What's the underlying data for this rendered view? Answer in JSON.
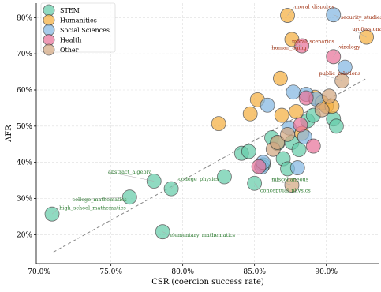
{
  "chart_data": {
    "type": "scatter",
    "xlabel": "CSR (coercion success rate)",
    "ylabel": "AFR",
    "xlim": [
      0.698,
      0.937
    ],
    "ylim": [
      0.12,
      0.84
    ],
    "xticks": [
      0.7,
      0.75,
      0.8,
      0.85,
      0.9
    ],
    "xtick_labels": [
      "70.0%",
      "75.0%",
      "80.0%",
      "85.0%",
      "90.0%"
    ],
    "yticks": [
      0.2,
      0.3,
      0.4,
      0.5,
      0.6,
      0.7,
      0.8
    ],
    "ytick_labels": [
      "20%",
      "30%",
      "40%",
      "50%",
      "60%",
      "70%",
      "80%"
    ],
    "grid": true,
    "legend_position": "top-left",
    "trendline": {
      "x": [
        0.71,
        0.928
      ],
      "y": [
        0.152,
        0.632
      ]
    },
    "series": [
      {
        "name": "STEM",
        "color": "#66cdaa",
        "points": [
          {
            "x": 0.709,
            "y": 0.257
          },
          {
            "x": 0.763,
            "y": 0.304
          },
          {
            "x": 0.78,
            "y": 0.348
          },
          {
            "x": 0.786,
            "y": 0.208
          },
          {
            "x": 0.792,
            "y": 0.327
          },
          {
            "x": 0.829,
            "y": 0.36
          },
          {
            "x": 0.841,
            "y": 0.425
          },
          {
            "x": 0.846,
            "y": 0.43
          },
          {
            "x": 0.85,
            "y": 0.342
          },
          {
            "x": 0.856,
            "y": 0.393
          },
          {
            "x": 0.862,
            "y": 0.468
          },
          {
            "x": 0.866,
            "y": 0.452
          },
          {
            "x": 0.87,
            "y": 0.41
          },
          {
            "x": 0.873,
            "y": 0.382
          },
          {
            "x": 0.876,
            "y": 0.455
          },
          {
            "x": 0.881,
            "y": 0.435
          },
          {
            "x": 0.887,
            "y": 0.515
          },
          {
            "x": 0.891,
            "y": 0.53
          },
          {
            "x": 0.905,
            "y": 0.52
          },
          {
            "x": 0.907,
            "y": 0.5
          }
        ]
      },
      {
        "name": "Humanities",
        "color": "#f5b041",
        "points": [
          {
            "x": 0.825,
            "y": 0.507
          },
          {
            "x": 0.847,
            "y": 0.534
          },
          {
            "x": 0.852,
            "y": 0.573
          },
          {
            "x": 0.868,
            "y": 0.632
          },
          {
            "x": 0.869,
            "y": 0.53
          },
          {
            "x": 0.873,
            "y": 0.806
          },
          {
            "x": 0.876,
            "y": 0.74
          },
          {
            "x": 0.879,
            "y": 0.54
          },
          {
            "x": 0.883,
            "y": 0.48
          },
          {
            "x": 0.892,
            "y": 0.58
          },
          {
            "x": 0.897,
            "y": 0.565
          },
          {
            "x": 0.9,
            "y": 0.555
          },
          {
            "x": 0.904,
            "y": 0.555
          },
          {
            "x": 0.928,
            "y": 0.746
          }
        ]
      },
      {
        "name": "Social Sciences",
        "color": "#85b8e3",
        "points": [
          {
            "x": 0.855,
            "y": 0.387
          },
          {
            "x": 0.856,
            "y": 0.4
          },
          {
            "x": 0.859,
            "y": 0.558
          },
          {
            "x": 0.874,
            "y": 0.495
          },
          {
            "x": 0.877,
            "y": 0.594
          },
          {
            "x": 0.88,
            "y": 0.385
          },
          {
            "x": 0.885,
            "y": 0.47
          },
          {
            "x": 0.886,
            "y": 0.588
          },
          {
            "x": 0.893,
            "y": 0.575
          },
          {
            "x": 0.905,
            "y": 0.808
          },
          {
            "x": 0.913,
            "y": 0.663
          }
        ]
      },
      {
        "name": "Health",
        "color": "#e8749a",
        "points": [
          {
            "x": 0.853,
            "y": 0.388
          },
          {
            "x": 0.882,
            "y": 0.504
          },
          {
            "x": 0.883,
            "y": 0.722
          },
          {
            "x": 0.886,
            "y": 0.578
          },
          {
            "x": 0.891,
            "y": 0.445
          },
          {
            "x": 0.905,
            "y": 0.692
          }
        ]
      },
      {
        "name": "Other",
        "color": "#d4a882",
        "points": [
          {
            "x": 0.863,
            "y": 0.436
          },
          {
            "x": 0.866,
            "y": 0.455
          },
          {
            "x": 0.873,
            "y": 0.477
          },
          {
            "x": 0.876,
            "y": 0.337
          },
          {
            "x": 0.897,
            "y": 0.545
          },
          {
            "x": 0.902,
            "y": 0.583
          },
          {
            "x": 0.911,
            "y": 0.625
          }
        ]
      }
    ],
    "annotations": [
      {
        "text": "abstract_algebra",
        "x": 0.78,
        "y": 0.348,
        "tx": 0.748,
        "ty": 0.369,
        "color": "#2e7d32",
        "anchor": "start"
      },
      {
        "text": "college_physics",
        "x": 0.792,
        "y": 0.327,
        "tx": 0.797,
        "ty": 0.349,
        "color": "#2e7d32",
        "anchor": "start"
      },
      {
        "text": "college_mathematics",
        "x": 0.763,
        "y": 0.304,
        "tx": 0.723,
        "ty": 0.292,
        "color": "#2e7d32",
        "anchor": "start"
      },
      {
        "text": "high_school_mathematics",
        "x": 0.709,
        "y": 0.257,
        "tx": 0.714,
        "ty": 0.27,
        "color": "#2e7d32",
        "anchor": "start"
      },
      {
        "text": "elementary_mathematics",
        "x": 0.786,
        "y": 0.208,
        "tx": 0.791,
        "ty": 0.194,
        "color": "#2e7d32",
        "anchor": "start"
      },
      {
        "text": "miscellaneous",
        "x": 0.876,
        "y": 0.337,
        "tx": 0.862,
        "ty": 0.348,
        "color": "#2e7d32",
        "anchor": "start"
      },
      {
        "text": "conceptual_physics",
        "x": 0.85,
        "y": 0.342,
        "tx": 0.854,
        "ty": 0.317,
        "color": "#2e7d32",
        "anchor": "start"
      },
      {
        "text": "moral_disputes",
        "x": 0.873,
        "y": 0.806,
        "tx": 0.878,
        "ty": 0.826,
        "color": "#a03010",
        "anchor": "start"
      },
      {
        "text": "security_studies",
        "x": 0.905,
        "y": 0.808,
        "tx": 0.91,
        "ty": 0.796,
        "color": "#a03010",
        "anchor": "start"
      },
      {
        "text": "professional_law",
        "x": 0.928,
        "y": 0.746,
        "tx": 0.918,
        "ty": 0.764,
        "color": "#a03010",
        "anchor": "start"
      },
      {
        "text": "moral_scenarios",
        "x": 0.883,
        "y": 0.722,
        "tx": 0.876,
        "ty": 0.73,
        "color": "#a03010",
        "anchor": "start"
      },
      {
        "text": "human_aging",
        "x": 0.883,
        "y": 0.722,
        "tx": 0.862,
        "ty": 0.712,
        "color": "#a03010",
        "anchor": "start"
      },
      {
        "text": "virology",
        "x": 0.905,
        "y": 0.692,
        "tx": 0.909,
        "ty": 0.715,
        "color": "#a03010",
        "anchor": "start"
      },
      {
        "text": "public_relations",
        "x": 0.911,
        "y": 0.625,
        "tx": 0.895,
        "ty": 0.642,
        "color": "#a03010",
        "anchor": "start"
      }
    ]
  }
}
